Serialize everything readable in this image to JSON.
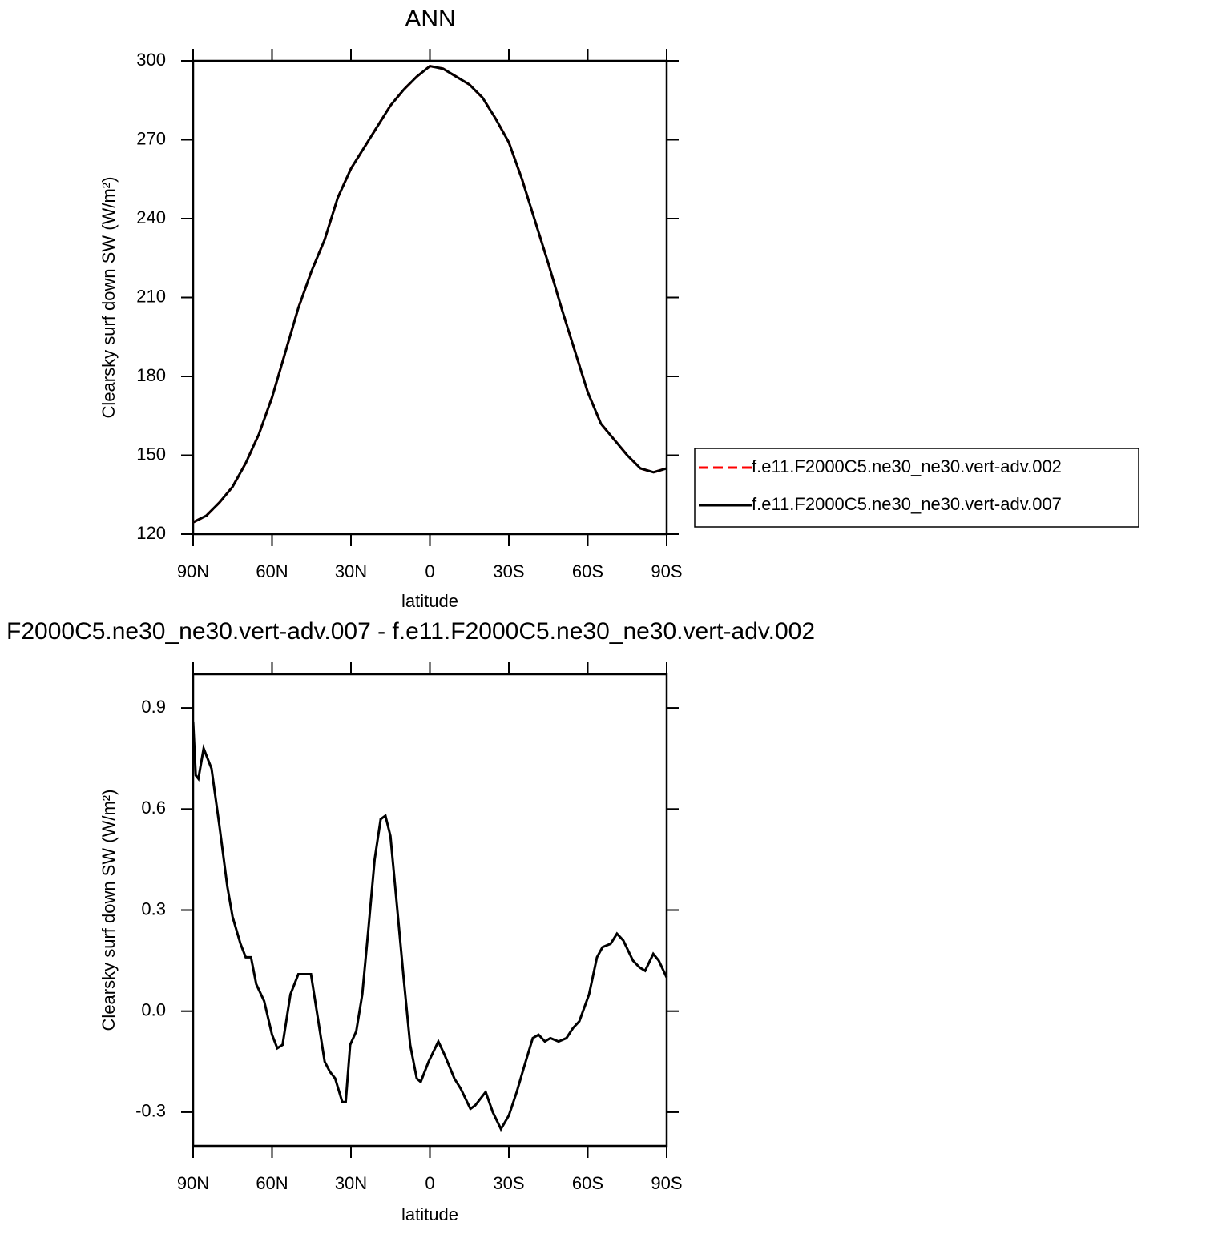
{
  "chart_data": [
    {
      "type": "line",
      "title": "ANN",
      "x_label": "latitude",
      "y_label": "Clearsky surf down SW (W/m²)",
      "x": [
        90,
        85,
        80,
        75,
        70,
        65,
        60,
        55,
        50,
        45,
        40,
        35,
        30,
        25,
        20,
        15,
        10,
        5,
        0,
        -5,
        -10,
        -15,
        -20,
        -25,
        -30,
        -35,
        -40,
        -45,
        -50,
        -55,
        -60,
        -65,
        -70,
        -75,
        -80,
        -85,
        -90
      ],
      "series": [
        {
          "name": "f.e11.F2000C5.ne30_ne30.vert-adv.002",
          "color": "#ff0000",
          "dashed": true,
          "values": [
            124.5,
            127,
            132,
            138,
            147,
            158,
            172,
            189,
            206,
            220,
            232,
            248,
            259,
            267,
            275,
            283,
            289,
            294,
            298,
            297,
            294,
            291,
            286,
            278,
            269,
            255,
            239,
            223,
            206,
            190,
            174,
            162,
            156,
            150,
            145,
            143.5,
            145
          ]
        },
        {
          "name": "f.e11.F2000C5.ne30_ne30.vert-adv.007",
          "color": "#000000",
          "dashed": false,
          "values": [
            124.5,
            127,
            132,
            138,
            147,
            158,
            172,
            189,
            206,
            220,
            232,
            248,
            259,
            267,
            275,
            283,
            289,
            294,
            298,
            297,
            294,
            291,
            286,
            278,
            269,
            255,
            239,
            223,
            206,
            190,
            174,
            162,
            156,
            150,
            145,
            143.5,
            145
          ]
        }
      ],
      "xlim": [
        90,
        -90
      ],
      "xticks": [
        {
          "value": 90,
          "label": "90N"
        },
        {
          "value": 60,
          "label": "60N"
        },
        {
          "value": 30,
          "label": "30N"
        },
        0,
        {
          "value": -30,
          "label": "30S"
        },
        {
          "value": -60,
          "label": "60S"
        },
        {
          "value": -90,
          "label": "90S"
        }
      ],
      "ylim": [
        120,
        300
      ],
      "yticks": [
        120,
        150,
        180,
        210,
        240,
        270,
        300
      ],
      "legend": "right"
    },
    {
      "type": "line",
      "title": "F2000C5.ne30_ne30.vert-adv.007 - f.e11.F2000C5.ne30_ne30.vert-adv.002",
      "x_label": "latitude",
      "y_label": "Clearsky surf down SW (W/m²)",
      "x": [
        90,
        89,
        88,
        86,
        83,
        80,
        77,
        75,
        72,
        70,
        68,
        66,
        63,
        60,
        58,
        56,
        53,
        50,
        45.2,
        43,
        40,
        38,
        36,
        33.3,
        32,
        30.3,
        28,
        25.7,
        23.3,
        21,
        18.7,
        16.9,
        15,
        12.6,
        10,
        7.5,
        5,
        3.5,
        0.5,
        -3.2,
        -5.6,
        -9.3,
        -11.7,
        -15.4,
        -17.2,
        -21.2,
        -23.9,
        -27,
        -30,
        -33,
        -36,
        -39.1,
        -41.3,
        -43.7,
        -45.8,
        -48.9,
        -51.9,
        -54.4,
        -56.8,
        -60.5,
        -63.5,
        -65.6,
        -68.7,
        -71.1,
        -73.5,
        -77.2,
        -79.7,
        -81.8,
        -84.9,
        -87,
        -90
      ],
      "series": [
        {
          "name": null,
          "color": "#000000",
          "dashed": false,
          "values": [
            0.86,
            0.7,
            0.69,
            0.78,
            0.72,
            0.55,
            0.37,
            0.28,
            0.2,
            0.16,
            0.16,
            0.08,
            0.03,
            -0.07,
            -0.11,
            -0.1,
            0.05,
            0.11,
            0.11,
            0.0,
            -0.15,
            -0.18,
            -0.2,
            -0.27,
            -0.27,
            -0.1,
            -0.06,
            0.05,
            0.25,
            0.45,
            0.57,
            0.58,
            0.52,
            0.32,
            0.1,
            -0.1,
            -0.2,
            -0.21,
            -0.15,
            -0.09,
            -0.13,
            -0.2,
            -0.23,
            -0.29,
            -0.28,
            -0.24,
            -0.3,
            -0.35,
            -0.31,
            -0.24,
            -0.16,
            -0.08,
            -0.07,
            -0.09,
            -0.08,
            -0.09,
            -0.08,
            -0.05,
            -0.03,
            0.05,
            0.16,
            0.19,
            0.2,
            0.23,
            0.21,
            0.15,
            0.13,
            0.12,
            0.17,
            0.15,
            0.1
          ]
        }
      ],
      "xlim": [
        90,
        -90
      ],
      "xticks": [
        {
          "value": 90,
          "label": "90N"
        },
        {
          "value": 60,
          "label": "60N"
        },
        {
          "value": 30,
          "label": "30N"
        },
        0,
        {
          "value": -30,
          "label": "30S"
        },
        {
          "value": -60,
          "label": "60S"
        },
        {
          "value": -90,
          "label": "90S"
        }
      ],
      "ylim": [
        -0.4,
        1.0
      ],
      "yticks": [
        -0.3,
        {
          "value": 0,
          "label": "0.0"
        },
        0.3,
        0.6,
        0.9
      ]
    }
  ]
}
